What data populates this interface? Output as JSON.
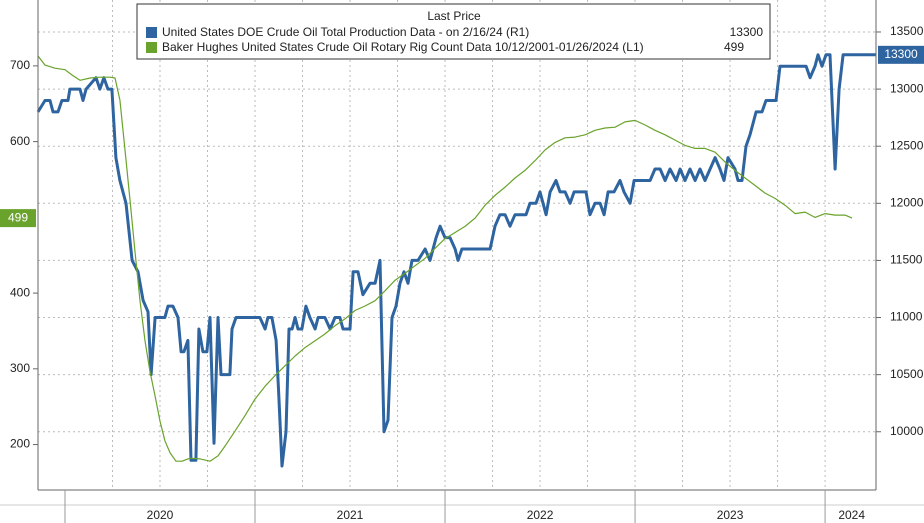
{
  "chart_data": {
    "type": "line",
    "legend_title": "Last Price",
    "xlim": [
      2019.858,
      2024.268
    ],
    "xticks": [
      {
        "value": 2020.5,
        "label": "2020"
      },
      {
        "value": 2021.5,
        "label": "2021"
      },
      {
        "value": 2022.5,
        "label": "2022"
      },
      {
        "value": 2023.5,
        "label": "2023"
      },
      {
        "value": 2024.14,
        "label": "2024"
      }
    ],
    "xminor_ticks": [
      2020,
      2021,
      2022,
      2023,
      2024
    ],
    "xgrid": [
      2020.25,
      2020.5,
      2020.75,
      2021,
      2021.25,
      2021.5,
      2021.75,
      2022,
      2022.25,
      2022.5,
      2022.75,
      2023,
      2023.25,
      2023.5,
      2023.75,
      2024
    ],
    "ylim": [
      140,
      787
    ],
    "yticks": [
      200,
      300,
      400,
      600,
      700
    ],
    "y2lim": [
      9490,
      13780
    ],
    "y2ticks": [
      10000,
      10500,
      11000,
      11500,
      12000,
      12500,
      13000,
      13500
    ],
    "grid": true,
    "series": [
      {
        "name": "United States DOE Crude Oil Total Production Data -  on 2/16/24  (R1)",
        "last_label": "13300",
        "color": "#2e64a0",
        "axis": "y2",
        "x": [
          2019.858,
          2019.895,
          2019.921,
          2019.937,
          2019.963,
          2019.984,
          2020.016,
          2020.026,
          2020.079,
          2020.095,
          2020.111,
          2020.163,
          2020.184,
          2020.205,
          2020.226,
          2020.247,
          2020.268,
          2020.289,
          2020.321,
          2020.353,
          2020.384,
          2020.411,
          2020.437,
          2020.453,
          2020.474,
          2020.526,
          2020.542,
          2020.568,
          2020.595,
          2020.611,
          2020.626,
          2020.647,
          2020.663,
          2020.689,
          2020.705,
          2020.726,
          2020.747,
          2020.763,
          2020.784,
          2020.805,
          2020.821,
          2020.868,
          2020.879,
          2020.9,
          2020.921,
          2020.974,
          2021.0,
          2021.026,
          2021.053,
          2021.068,
          2021.089,
          2021.111,
          2021.126,
          2021.142,
          2021.163,
          2021.179,
          2021.195,
          2021.211,
          2021.226,
          2021.247,
          2021.268,
          2021.289,
          2021.316,
          2021.332,
          2021.368,
          2021.395,
          2021.421,
          2021.447,
          2021.463,
          2021.5,
          2021.516,
          2021.542,
          2021.568,
          2021.605,
          2021.632,
          2021.658,
          2021.679,
          2021.7,
          2021.721,
          2021.742,
          2021.763,
          2021.784,
          2021.805,
          2021.826,
          2021.858,
          2021.895,
          2021.921,
          2021.953,
          2021.974,
          2022.0,
          2022.026,
          2022.053,
          2022.068,
          2022.089,
          2022.121,
          2022.237,
          2022.263,
          2022.289,
          2022.316,
          2022.342,
          2022.368,
          2022.395,
          2022.426,
          2022.447,
          2022.479,
          2022.5,
          2022.532,
          2022.553,
          2022.584,
          2022.605,
          2022.632,
          2022.658,
          2022.679,
          2022.711,
          2022.742,
          2022.763,
          2022.789,
          2022.816,
          2022.837,
          2022.858,
          2022.889,
          2022.921,
          2022.942,
          2022.974,
          2022.995,
          2023.026,
          2023.079,
          2023.105,
          2023.132,
          2023.158,
          2023.184,
          2023.216,
          2023.237,
          2023.263,
          2023.289,
          2023.316,
          2023.342,
          2023.368,
          2023.395,
          2023.421,
          2023.447,
          2023.468,
          2023.489,
          2023.526,
          2023.542,
          2023.563,
          2023.584,
          2023.605,
          2023.637,
          2023.668,
          2023.689,
          2023.742,
          2023.763,
          2023.868,
          2023.9,
          2023.921,
          2023.947,
          2023.963,
          2023.984,
          2024.005,
          2024.026,
          2024.053,
          2024.074,
          2024.095,
          2024.268
        ],
        "values": [
          12800,
          12900,
          12900,
          12800,
          12800,
          12900,
          12900,
          13000,
          13000,
          12900,
          13000,
          13100,
          13000,
          13100,
          13000,
          13000,
          12400,
          12200,
          12000,
          11500,
          11400,
          11150,
          11050,
          10500,
          11000,
          11000,
          11100,
          11100,
          11000,
          10700,
          10700,
          10800,
          9750,
          9750,
          10900,
          10700,
          10700,
          11000,
          9900,
          11000,
          10500,
          10500,
          10900,
          11000,
          11000,
          11000,
          11000,
          11000,
          10900,
          11000,
          11000,
          10800,
          10300,
          9700,
          10000,
          10900,
          10900,
          11000,
          10900,
          10900,
          11100,
          11000,
          10900,
          11000,
          11000,
          10900,
          11000,
          11000,
          10900,
          10900,
          11400,
          11400,
          11200,
          11300,
          11300,
          11500,
          10000,
          10100,
          11000,
          11100,
          11300,
          11400,
          11300,
          11500,
          11500,
          11600,
          11500,
          11700,
          11800,
          11700,
          11700,
          11600,
          11500,
          11600,
          11600,
          11600,
          11800,
          11900,
          11900,
          11800,
          11900,
          11900,
          11900,
          12000,
          12000,
          12100,
          11900,
          12100,
          12200,
          12100,
          12100,
          12000,
          12100,
          12100,
          12100,
          11900,
          12000,
          12000,
          11900,
          12100,
          12100,
          12200,
          12100,
          12000,
          12200,
          12200,
          12200,
          12300,
          12300,
          12200,
          12300,
          12200,
          12300,
          12200,
          12300,
          12200,
          12300,
          12200,
          12300,
          12400,
          12300,
          12200,
          12400,
          12300,
          12200,
          12200,
          12500,
          12600,
          12800,
          12800,
          12900,
          12900,
          13200,
          13200,
          13200,
          13100,
          13200,
          13300,
          13200,
          13300,
          13300,
          12300,
          13000,
          13300,
          13300
        ]
      },
      {
        "name": "Baker Hughes United States Crude Oil Rotary Rig Count Data 10/12/2001-01/26/2024   (L1)",
        "last_label": "499",
        "color": "#6aa32b",
        "x": [
          2019.858,
          2019.895,
          2019.947,
          2020.0,
          2020.037,
          2020.079,
          2020.132,
          2020.184,
          2020.237,
          2020.263,
          2020.289,
          2020.316,
          2020.342,
          2020.368,
          2020.395,
          2020.421,
          2020.447,
          2020.474,
          2020.5,
          2020.526,
          2020.553,
          2020.584,
          2020.616,
          2020.658,
          2020.711,
          2020.763,
          2020.805,
          2020.842,
          2020.895,
          2020.947,
          2021.0,
          2021.053,
          2021.105,
          2021.158,
          2021.211,
          2021.263,
          2021.316,
          2021.368,
          2021.421,
          2021.474,
          2021.526,
          2021.579,
          2021.632,
          2021.684,
          2021.737,
          2021.789,
          2021.842,
          2021.895,
          2021.947,
          2022.0,
          2022.053,
          2022.105,
          2022.158,
          2022.211,
          2022.263,
          2022.316,
          2022.368,
          2022.421,
          2022.474,
          2022.526,
          2022.579,
          2022.632,
          2022.684,
          2022.737,
          2022.789,
          2022.842,
          2022.895,
          2022.947,
          2023.0,
          2023.053,
          2023.105,
          2023.158,
          2023.211,
          2023.263,
          2023.316,
          2023.368,
          2023.421,
          2023.474,
          2023.526,
          2023.579,
          2023.632,
          2023.684,
          2023.737,
          2023.789,
          2023.842,
          2023.895,
          2023.947,
          2024.0,
          2024.053,
          2024.105,
          2024.142
        ],
        "values": [
          713,
          701,
          697,
          695,
          688,
          681,
          684,
          685,
          685,
          684,
          655,
          589,
          523,
          456,
          390,
          337,
          297,
          264,
          231,
          205,
          189,
          178,
          178,
          182,
          181,
          178,
          185,
          198,
          218,
          238,
          260,
          277,
          291,
          304,
          317,
          328,
          337,
          346,
          357,
          366,
          377,
          383,
          390,
          403,
          417,
          426,
          436,
          446,
          459,
          472,
          480,
          488,
          499,
          516,
          529,
          540,
          552,
          562,
          575,
          589,
          599,
          605,
          606,
          609,
          615,
          618,
          619,
          626,
          628,
          622,
          615,
          609,
          602,
          595,
          591,
          591,
          586,
          573,
          562,
          552,
          542,
          532,
          525,
          516,
          505,
          507,
          500,
          505,
          503,
          503,
          499
        ]
      }
    ]
  }
}
